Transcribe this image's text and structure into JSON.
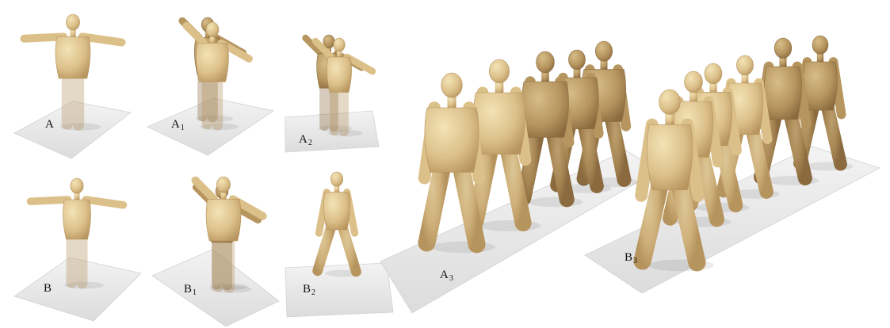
{
  "figure": {
    "panels": [
      {
        "id": "A",
        "label": "A",
        "subscript": ""
      },
      {
        "id": "A1",
        "label": "A",
        "subscript": "1"
      },
      {
        "id": "A2",
        "label": "A",
        "subscript": "2"
      },
      {
        "id": "A3",
        "label": "A",
        "subscript": "3"
      },
      {
        "id": "B",
        "label": "B",
        "subscript": ""
      },
      {
        "id": "B1",
        "label": "B",
        "subscript": "1"
      },
      {
        "id": "B2",
        "label": "B",
        "subscript": "2"
      },
      {
        "id": "B3",
        "label": "B",
        "subscript": "3"
      }
    ],
    "colors": {
      "body_light": "#ead7a6",
      "body_mid": "#d2b478",
      "body_dark": "#a88452",
      "floor": "#e9e9e9",
      "floor_edge": "#cfcfcf",
      "shadow": "#bdbdbd",
      "label": "#111111"
    }
  }
}
